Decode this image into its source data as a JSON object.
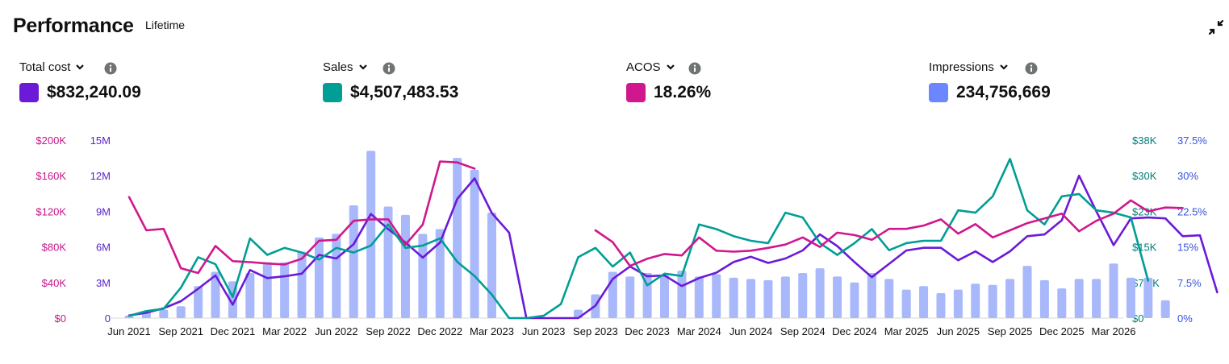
{
  "header": {
    "title": "Performance",
    "subtitle": "Lifetime"
  },
  "metrics": [
    {
      "label": "Total cost",
      "value": "$832,240.09",
      "color": "#6b1ad8"
    },
    {
      "label": "Sales",
      "value": "$4,507,483.53",
      "color": "#009e94"
    },
    {
      "label": "ACOS",
      "value": "18.26%",
      "color": "#d0178d"
    },
    {
      "label": "Impressions",
      "value": "234,756,669",
      "color": "#6b86ff"
    }
  ],
  "icons": {
    "dropdown": "chevron-down-icon",
    "info": "info-icon",
    "collapse": "collapse-icon"
  },
  "chart_data": {
    "type": "bar+line",
    "x_tick_labels": [
      "Jun 2021",
      "Sep 2021",
      "Dec 2021",
      "Mar 2022",
      "Jun 2022",
      "Sep 2022",
      "Dec 2022",
      "Mar 2023",
      "Jun 2023",
      "Sep 2023",
      "Dec 2023",
      "Mar 2024",
      "Jun 2024",
      "Sep 2024",
      "Dec 2024",
      "Mar 2025",
      "Jun 2025",
      "Sep 2025",
      "Dec 2025",
      "Mar 2026"
    ],
    "axes": {
      "cost": {
        "side": "left-outer",
        "color": "#c7158a",
        "range": [
          0,
          200000
        ],
        "ticks": [
          "$0",
          "$40K",
          "$80K",
          "$120K",
          "$160K",
          "$200K"
        ]
      },
      "impressions": {
        "side": "left-inner",
        "color": "#5a23c8",
        "range": [
          0,
          15000000
        ],
        "ticks": [
          "0",
          "3M",
          "6M",
          "9M",
          "12M",
          "15M"
        ]
      },
      "sales": {
        "side": "right-inner",
        "color": "#007f78",
        "range": [
          0,
          38000
        ],
        "ticks": [
          "$0",
          "$7.5K",
          "$15K",
          "$23K",
          "$30K",
          "$38K"
        ]
      },
      "acos": {
        "side": "right-outer",
        "color": "#3653e0",
        "range": [
          0,
          37.5
        ],
        "ticks": [
          "0%",
          "7.5%",
          "15%",
          "22.5%",
          "30%",
          "37.5%"
        ]
      }
    },
    "series": [
      {
        "name": "Impressions",
        "type": "bar",
        "color": "#a8b8fb",
        "axis": "impressions",
        "values": [
          200000,
          500000,
          700000,
          1000000,
          2700000,
          3900000,
          3100000,
          3800000,
          4700000,
          4700000,
          5600000,
          6800000,
          7100000,
          9500000,
          14100000,
          9400000,
          8700000,
          7100000,
          7500000,
          13500000,
          12500000,
          8900000,
          0,
          0,
          0,
          0,
          700000,
          2000000,
          3900000,
          3500000,
          3800000,
          3600000,
          4000000,
          3500000,
          3700000,
          3400000,
          3300000,
          3200000,
          3500000,
          3800000,
          4200000,
          3500000,
          3000000,
          3800000,
          3300000,
          2400000,
          2700000,
          2100000,
          2400000,
          2900000,
          2800000,
          3300000,
          4400000,
          3200000,
          2500000,
          3300000,
          3300000,
          4600000,
          3400000,
          3400000,
          1500000
        ]
      },
      {
        "name": "Total cost",
        "type": "line",
        "color": "#6b1ad8",
        "axis": "cost",
        "values": [
          3000,
          6000,
          11000,
          19000,
          33000,
          48000,
          15000,
          54000,
          45000,
          47000,
          50000,
          71000,
          67000,
          83000,
          117000,
          100000,
          85000,
          68000,
          85000,
          134000,
          157000,
          118000,
          96000,
          0,
          0,
          0,
          0,
          14000,
          44000,
          58000,
          47000,
          48000,
          36000,
          45000,
          51000,
          63000,
          69000,
          62000,
          67000,
          76000,
          94000,
          81000,
          63000,
          46000,
          61000,
          76000,
          79000,
          79000,
          65000,
          75000,
          63000,
          75000,
          92000,
          94000,
          110000,
          160000,
          120000,
          82000,
          112000,
          113000,
          112000,
          92000,
          93000,
          29000
        ]
      },
      {
        "name": "Sales",
        "type": "line",
        "color": "#009e94",
        "axis": "sales",
        "values": [
          500,
          1500,
          2000,
          6500,
          13000,
          11500,
          4500,
          17000,
          13500,
          15000,
          14000,
          12500,
          15000,
          14000,
          15500,
          20000,
          15000,
          15500,
          17000,
          12000,
          9000,
          5000,
          0,
          0,
          500,
          3000,
          13000,
          15000,
          11000,
          14000,
          7000,
          9500,
          9000,
          20000,
          19000,
          17500,
          16500,
          16000,
          22500,
          21500,
          16000,
          13500,
          16000,
          19000,
          14500,
          16000,
          16500,
          16500,
          23000,
          22500,
          26000,
          34000,
          23000,
          20000,
          26000,
          26500,
          23000,
          22500,
          21500,
          8000
        ]
      },
      {
        "name": "ACOS",
        "type": "line",
        "color": "#d0178d",
        "axis": "acos",
        "values": [
          25.5,
          18.5,
          18.8,
          10.5,
          9.5,
          15.2,
          12,
          11.8,
          11.5,
          11.3,
          12.5,
          16.3,
          16.5,
          20.5,
          20.8,
          20.8,
          15.5,
          19.7,
          33,
          32.8,
          31.5,
          null,
          null,
          null,
          null,
          null,
          null,
          18.5,
          16,
          11,
          12.5,
          13.5,
          13.2,
          17,
          14.2,
          14,
          14.2,
          14.8,
          15.5,
          17,
          15,
          18,
          17.5,
          16.5,
          18.8,
          18.8,
          19.5,
          20.8,
          17.8,
          19.8,
          17,
          18.5,
          20,
          21,
          22,
          18.3,
          20.5,
          22,
          24.8,
          22.5,
          23.3,
          23.2
        ]
      }
    ]
  }
}
